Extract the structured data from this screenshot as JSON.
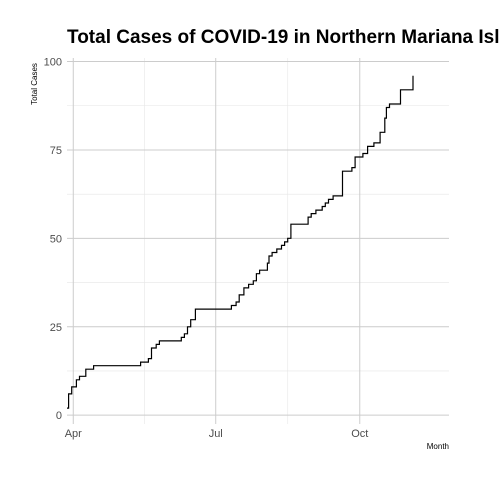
{
  "chart_data": {
    "type": "line",
    "title": "Total Cases of COVID-19 in Northern Mariana Isl",
    "xlabel": "Month",
    "ylabel": "Total Cases",
    "x_ticks": [
      {
        "label": "Apr",
        "date": "2020-04-01"
      },
      {
        "label": "Jul",
        "date": "2020-07-01"
      },
      {
        "label": "Oct",
        "date": "2020-10-01"
      }
    ],
    "y_ticks": [
      0,
      25,
      50,
      75,
      100
    ],
    "xlim": [
      "2020-03-28",
      "2020-11-27"
    ],
    "ylim": [
      -2.5,
      101
    ],
    "grid": true,
    "series": [
      {
        "x": [
          "2020-03-28",
          "2020-03-29",
          "2020-03-31",
          "2020-04-03",
          "2020-04-05",
          "2020-04-09",
          "2020-04-14",
          "2020-04-18",
          "2020-05-01",
          "2020-05-14",
          "2020-05-19",
          "2020-05-21",
          "2020-05-24",
          "2020-05-26",
          "2020-06-09",
          "2020-06-11",
          "2020-06-13",
          "2020-06-15",
          "2020-06-18",
          "2020-07-03",
          "2020-07-11",
          "2020-07-12",
          "2020-07-14",
          "2020-07-16",
          "2020-07-19",
          "2020-07-22",
          "2020-07-25",
          "2020-07-27",
          "2020-07-29",
          "2020-08-03",
          "2020-08-04",
          "2020-08-06",
          "2020-08-09",
          "2020-08-12",
          "2020-08-14",
          "2020-08-16",
          "2020-08-18",
          "2020-08-25",
          "2020-08-29",
          "2020-08-31",
          "2020-09-03",
          "2020-09-07",
          "2020-09-09",
          "2020-09-11",
          "2020-09-14",
          "2020-09-20",
          "2020-09-26",
          "2020-09-28",
          "2020-10-03",
          "2020-10-06",
          "2020-10-10",
          "2020-10-14",
          "2020-10-17",
          "2020-10-18",
          "2020-10-20",
          "2020-10-22",
          "2020-10-27",
          "2020-11-02",
          "2020-11-04"
        ],
        "y": [
          2,
          6,
          8,
          10,
          11,
          13,
          14,
          14,
          14,
          15,
          16,
          19,
          20,
          21,
          22,
          23,
          25,
          27,
          30,
          30,
          31,
          31,
          32,
          34,
          36,
          37,
          38,
          40,
          41,
          43,
          45,
          46,
          47,
          48,
          49,
          50,
          54,
          54,
          56,
          57,
          58,
          59,
          60,
          61,
          62,
          69,
          70,
          73,
          74,
          76,
          77,
          80,
          84,
          87,
          88,
          88,
          92,
          92,
          96
        ]
      }
    ]
  }
}
